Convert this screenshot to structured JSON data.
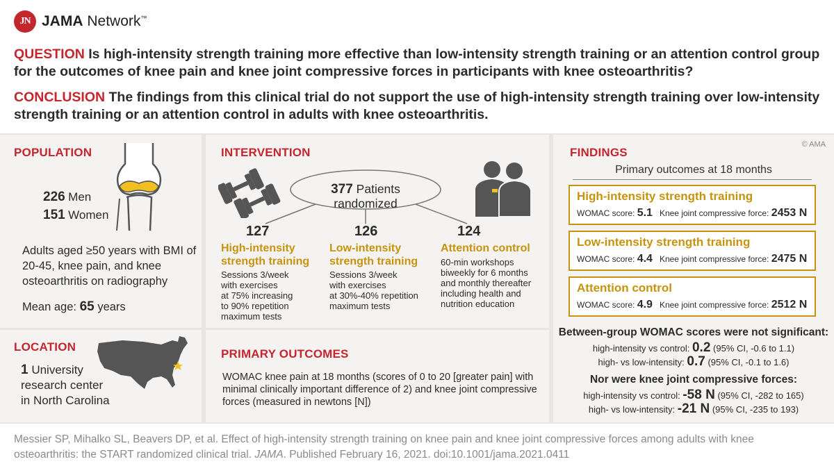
{
  "header": {
    "logo_badge": "JN",
    "logo_text_bold": "JAMA",
    "logo_text": "Network",
    "logo_tm": "™"
  },
  "question": {
    "label": "QUESTION",
    "text": "Is high-intensity strength training more effective than low-intensity strength training or an attention control group for the outcomes of knee pain and knee joint compressive forces in participants with knee osteoarthritis?"
  },
  "conclusion": {
    "label": "CONCLUSION",
    "text": "The findings from this clinical trial do not support the use of high-intensity strength training over low-intensity strength training or an attention control in adults with knee osteoarthritis."
  },
  "population": {
    "title": "POPULATION",
    "men_count": "226",
    "men_label": "Men",
    "women_count": "151",
    "women_label": "Women",
    "description": "Adults aged ≥50 years with BMI of 20-45, knee pain, and knee osteoarthritis on radiography",
    "mean_age_label": "Mean age:",
    "mean_age_value": "65",
    "mean_age_unit": "years"
  },
  "location": {
    "title": "LOCATION",
    "count": "1",
    "text_line1": "University",
    "text_line2": "research center",
    "text_line3": "in North Carolina"
  },
  "intervention": {
    "title": "INTERVENTION",
    "randomized_count": "377",
    "randomized_label": "Patients randomized",
    "arms": [
      {
        "count": "127",
        "title_line1": "High-intensity",
        "title_line2": "strength training",
        "desc": [
          "Sessions 3/week",
          "with exercises",
          "at 75% increasing",
          "to 90% repetition",
          "maximum tests"
        ]
      },
      {
        "count": "126",
        "title_line1": "Low-intensity",
        "title_line2": "strength training",
        "desc": [
          "Sessions 3/week",
          "with exercises",
          "at 30%-40% repetition",
          "maximum tests"
        ]
      },
      {
        "count": "124",
        "title_line1": "Attention control",
        "title_line2": "",
        "desc": [
          "60-min workshops",
          "biweekly for 6 months",
          "and monthly thereafter",
          "including health and",
          "nutrition education"
        ]
      }
    ]
  },
  "primary_outcomes": {
    "title": "PRIMARY OUTCOMES",
    "text": "WOMAC knee pain at 18 months (scores of 0 to 20 [greater pain] with minimal clinically important difference of 2) and knee joint compressive forces (measured in newtons [N])"
  },
  "findings": {
    "title": "FINDINGS",
    "copyright": "© AMA",
    "subtitle": "Primary outcomes at 18 months",
    "womac_label": "WOMAC score:",
    "force_label": "Knee joint compressive force:",
    "groups": [
      {
        "name": "High-intensity strength training",
        "womac": "5.1",
        "force": "2453 N"
      },
      {
        "name": "Low-intensity strength training",
        "womac": "4.4",
        "force": "2475 N"
      },
      {
        "name": "Attention control",
        "womac": "4.9",
        "force": "2512 N"
      }
    ],
    "womac_heading": "Between-group WOMAC scores were not significant:",
    "womac_comparisons": [
      {
        "label": "high-intensity vs control:",
        "value": "0.2",
        "ci": "(95% CI, -0.6 to 1.1)"
      },
      {
        "label": "high- vs low-intensity:",
        "value": "0.7",
        "ci": "(95% CI, -0.1 to 1.6)"
      }
    ],
    "force_heading": "Nor were knee joint compressive forces:",
    "force_comparisons": [
      {
        "label": "high-intensity vs control:",
        "value": "-58 N",
        "ci": "(95% CI, -282 to 165)"
      },
      {
        "label": "high- vs low-intensity:",
        "value": "-21 N",
        "ci": "(95% CI, -235 to 193)"
      }
    ]
  },
  "citation": {
    "part1": "Messier SP, Mihalko SL, Beavers DP, et al. Effect of high-intensity strength training on knee pain and knee joint compressive forces among adults with knee osteoarthritis: the START randomized clinical trial.",
    "journal": "JAMA",
    "part2": ". Published February 16, 2021. doi:10.1001/jama.2021.0411"
  },
  "colors": {
    "accent_red": "#c4262e",
    "accent_gold": "#c8930c",
    "panel_bg": "#f4f3f1",
    "divider": "#e8e6e3"
  }
}
